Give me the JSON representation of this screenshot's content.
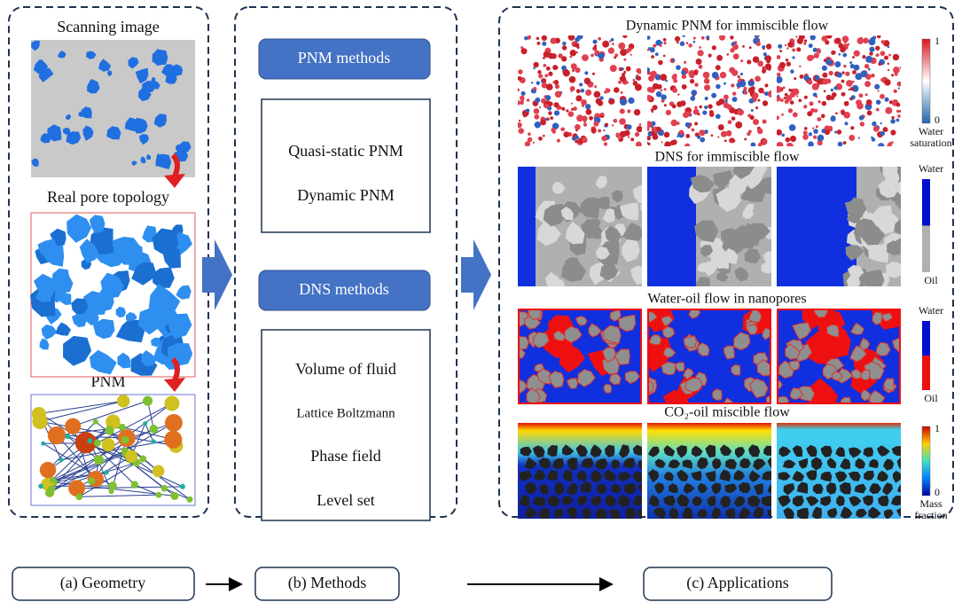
{
  "geometry": {
    "labels": [
      "Scanning image",
      "Real pore topology",
      "PNM"
    ],
    "caption": "(a) Geometry"
  },
  "methods": {
    "pnm": {
      "title": "PNM methods",
      "items": [
        "Quasi-static PNM",
        "Dynamic PNM"
      ]
    },
    "dns": {
      "title": "DNS methods",
      "items": [
        "Volume of fluid",
        "Lattice Boltzmann",
        "Phase field",
        "Level set"
      ]
    },
    "caption": "(b) Methods"
  },
  "applications": {
    "panels": [
      {
        "title": "Dynamic PNM for immiscible flow",
        "legend": [
          "1",
          "0",
          "Water",
          "saturation"
        ]
      },
      {
        "title": "DNS for immiscible flow",
        "legend": [
          "Water",
          "Oil"
        ]
      },
      {
        "title": "Water-oil flow in nanopores",
        "legend": [
          "Water",
          "Oil"
        ]
      },
      {
        "title": "CO₂-oil miscible flow",
        "legend": [
          "1",
          "0",
          "Mass",
          "fraction"
        ]
      }
    ],
    "caption": "(c) Applications"
  }
}
